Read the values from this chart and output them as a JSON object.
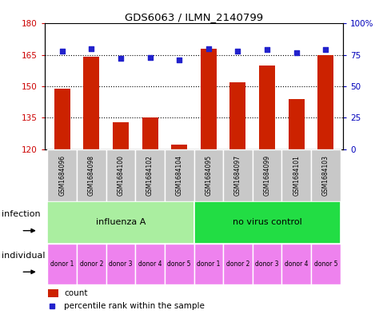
{
  "title": "GDS6063 / ILMN_2140799",
  "samples": [
    "GSM1684096",
    "GSM1684098",
    "GSM1684100",
    "GSM1684102",
    "GSM1684104",
    "GSM1684095",
    "GSM1684097",
    "GSM1684099",
    "GSM1684101",
    "GSM1684103"
  ],
  "counts": [
    149,
    164,
    133,
    135,
    122,
    168,
    152,
    160,
    144,
    165
  ],
  "percentiles": [
    78,
    80,
    72,
    73,
    71,
    80,
    78,
    79,
    77,
    79
  ],
  "ylim_left": [
    120,
    180
  ],
  "ylim_right": [
    0,
    100
  ],
  "yticks_left": [
    120,
    135,
    150,
    165,
    180
  ],
  "yticks_right": [
    0,
    25,
    50,
    75,
    100
  ],
  "infection_groups": [
    {
      "label": "influenza A",
      "start": 0,
      "end": 5,
      "color": "#AAEEA0"
    },
    {
      "label": "no virus control",
      "start": 5,
      "end": 10,
      "color": "#22DD44"
    }
  ],
  "donor_labels": [
    "donor 1",
    "donor 2",
    "donor 3",
    "donor 4",
    "donor 5",
    "donor 1",
    "donor 2",
    "donor 3",
    "donor 4",
    "donor 5"
  ],
  "donor_color": "#EE82EE",
  "bar_color": "#CC2200",
  "dot_color": "#2222CC",
  "sample_bg_color": "#C8C8C8",
  "left_axis_color": "#CC0000",
  "right_axis_color": "#0000BB",
  "infection_label": "infection",
  "individual_label": "individual",
  "legend_count_label": "count",
  "legend_pct_label": "percentile rank within the sample"
}
